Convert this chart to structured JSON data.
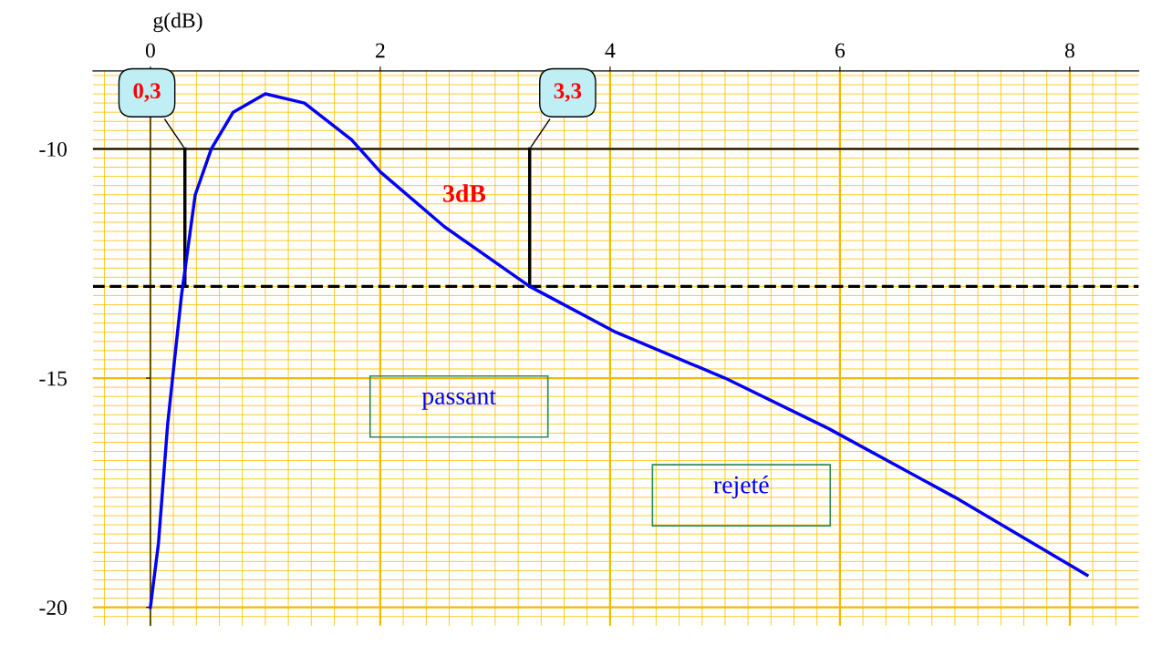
{
  "chart_data": {
    "type": "line",
    "ylabel": "g(dB)",
    "x": [
      0,
      0.07,
      0.15,
      0.27,
      0.39,
      0.53,
      0.72,
      1.0,
      1.34,
      1.75,
      2.0,
      2.56,
      3.3,
      4.05,
      5.0,
      5.9,
      7.0,
      8.15
    ],
    "series": [
      {
        "color": "#0000ff",
        "values": [
          -20,
          -18.6,
          -16,
          -13.2,
          -11,
          -10,
          -9.2,
          -8.8,
          -9.0,
          -9.8,
          -10.5,
          -11.7,
          -13,
          -14,
          -15,
          -16.1,
          -17.6,
          -19.3
        ]
      }
    ],
    "xlim": [
      -0.5,
      8.6
    ],
    "ylim": [
      -20.4,
      -8.3
    ],
    "xticks": [
      0,
      2,
      4,
      6,
      8
    ],
    "yticks": [
      {
        "value": -10,
        "label": "-10"
      },
      {
        "value": -15,
        "label": "-15"
      },
      {
        "value": -20,
        "label": "-20"
      }
    ],
    "grid": true,
    "marker": "none",
    "line_style": "solid",
    "ref_lines": [
      {
        "axis": "y",
        "value": -10,
        "color": "#000000",
        "line_style": "solid"
      },
      {
        "axis": "y",
        "value": -13,
        "color": "#000000",
        "line_style": "dashed"
      },
      {
        "axis": "x",
        "value": 0.3,
        "label": "0,3",
        "color": "#000000",
        "line_style": "solid"
      },
      {
        "axis": "x",
        "value": 3.3,
        "label": "3,3",
        "color": "#000000",
        "line_style": "solid"
      }
    ],
    "annotations": [
      "3dB",
      "passant",
      "rejeté"
    ]
  }
}
